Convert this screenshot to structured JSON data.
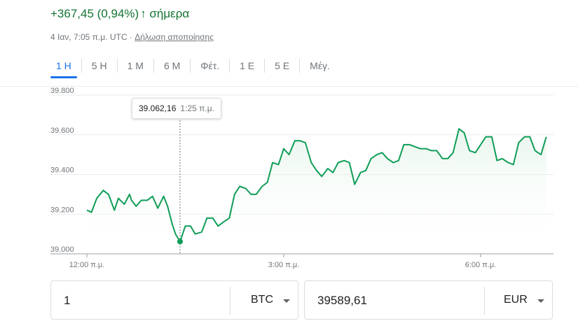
{
  "header": {
    "change_text": "+367,45 (0,94%)",
    "change_arrow": "↑",
    "change_period": "σήμερα",
    "timestamp": "4 Ιαν, 7:05 π.μ. UTC",
    "meta_separator": "·",
    "disclaimer": "Δήλωση αποποίησης",
    "positive_color": "#137333"
  },
  "tabs": [
    {
      "label": "1 Η",
      "active": true
    },
    {
      "label": "5 Η",
      "active": false
    },
    {
      "label": "1 Μ",
      "active": false
    },
    {
      "label": "6 Μ",
      "active": false
    },
    {
      "label": "Φέτ.",
      "active": false
    },
    {
      "label": "1 Ε",
      "active": false
    },
    {
      "label": "5 Ε",
      "active": false
    },
    {
      "label": "Μέγ.",
      "active": false
    }
  ],
  "tooltip": {
    "value": "39.062,16",
    "time": "1:25 π.μ."
  },
  "chart_data": {
    "type": "area",
    "line_color": "#0f9d58",
    "fill_color": "#e6f4ea",
    "grid": true,
    "ylim": [
      39000,
      39800
    ],
    "yticks": [
      39000,
      39200,
      39400,
      39600,
      39800
    ],
    "ytick_labels": [
      "39.000",
      "39.200",
      "39.400",
      "39.600",
      "39.800"
    ],
    "xlim_hours": [
      -0.1,
      7.0
    ],
    "xticks_hours": [
      0,
      3,
      6
    ],
    "xtick_labels": [
      "12:00 π.μ.",
      "3:00 π.μ.",
      "6:00 π.μ."
    ],
    "highlight_hour": 1.42,
    "highlight_value": 39062.16,
    "x_hours": [
      0,
      0.07,
      0.15,
      0.25,
      0.33,
      0.42,
      0.48,
      0.57,
      0.65,
      0.68,
      0.75,
      0.83,
      0.92,
      1.0,
      1.08,
      1.17,
      1.23,
      1.3,
      1.35,
      1.42,
      1.5,
      1.58,
      1.65,
      1.75,
      1.83,
      1.92,
      2.0,
      2.08,
      2.17,
      2.25,
      2.33,
      2.42,
      2.5,
      2.58,
      2.67,
      2.75,
      2.83,
      2.92,
      3.0,
      3.08,
      3.17,
      3.25,
      3.33,
      3.42,
      3.5,
      3.58,
      3.67,
      3.75,
      3.83,
      3.92,
      4.0,
      4.08,
      4.17,
      4.25,
      4.33,
      4.42,
      4.5,
      4.58,
      4.67,
      4.75,
      4.83,
      4.92,
      5.0,
      5.08,
      5.17,
      5.25,
      5.33,
      5.42,
      5.5,
      5.58,
      5.67,
      5.75,
      5.83,
      5.92,
      6.0,
      6.08,
      6.17,
      6.25,
      6.33,
      6.42,
      6.5,
      6.58,
      6.67,
      6.75,
      6.83,
      6.92,
      7.0
    ],
    "values": [
      39220,
      39210,
      39280,
      39320,
      39300,
      39220,
      39280,
      39250,
      39300,
      39270,
      39240,
      39270,
      39270,
      39290,
      39230,
      39290,
      39240,
      39150,
      39100,
      39062,
      39140,
      39140,
      39100,
      39110,
      39180,
      39180,
      39140,
      39160,
      39180,
      39300,
      39340,
      39330,
      39300,
      39300,
      39340,
      39360,
      39460,
      39450,
      39530,
      39500,
      39570,
      39570,
      39560,
      39460,
      39420,
      39390,
      39430,
      39410,
      39460,
      39470,
      39460,
      39350,
      39410,
      39420,
      39480,
      39500,
      39510,
      39480,
      39460,
      39470,
      39550,
      39550,
      39540,
      39530,
      39530,
      39520,
      39520,
      39480,
      39480,
      39510,
      39630,
      39610,
      39520,
      39510,
      39550,
      39590,
      39590,
      39470,
      39480,
      39460,
      39450,
      39560,
      39590,
      39590,
      39520,
      39500,
      39590
    ]
  },
  "converter": {
    "from_amount": "1",
    "from_currency": "BTC",
    "to_amount": "39589,61",
    "to_currency": "EUR"
  }
}
